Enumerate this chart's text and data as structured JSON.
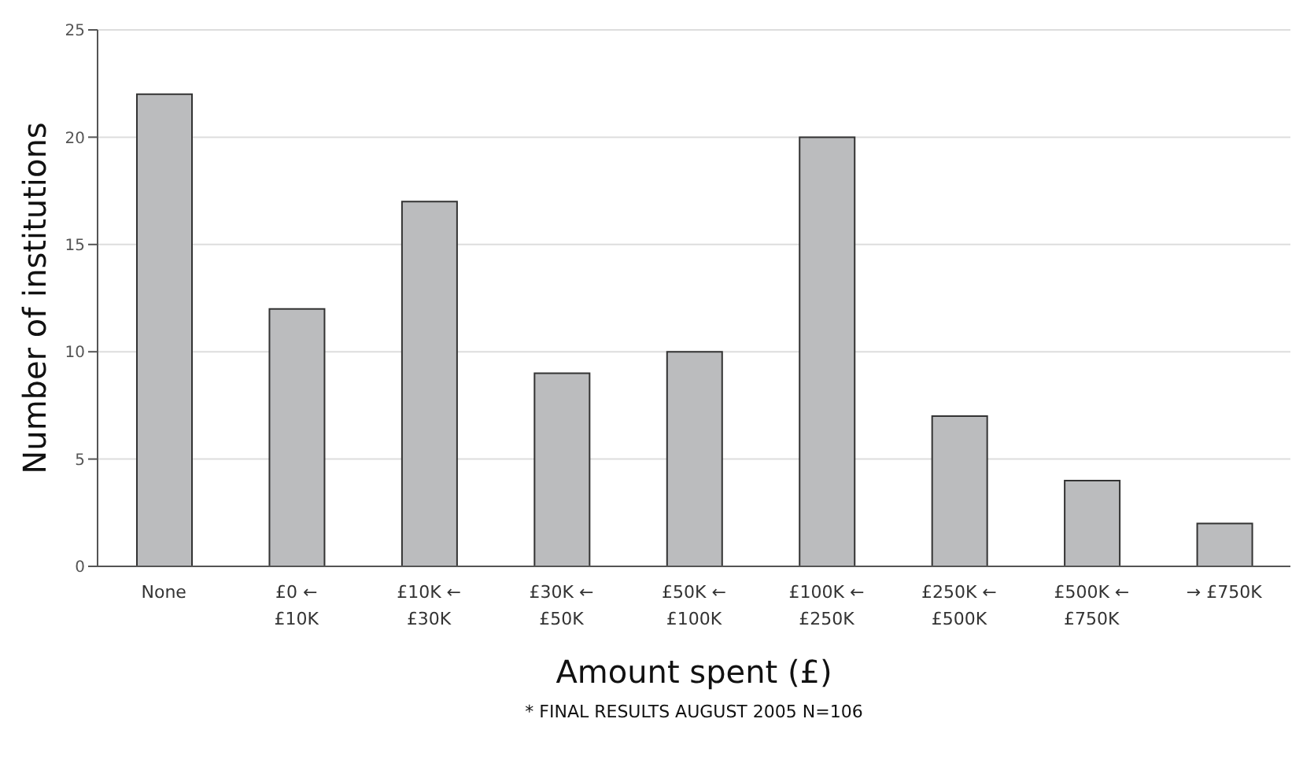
{
  "chart_data": {
    "type": "bar",
    "xlabel": "Amount spent (£)",
    "ylabel": "Number of institutions",
    "categories": [
      "None",
      "£0 ← £10K",
      "£10K ← £30K",
      "£30K ← £50K",
      "£50K ← £100K",
      "£100K ← £250K",
      "£250K ← £500K",
      "£500K ← £750K",
      "→ £750K"
    ],
    "values": [
      22,
      12,
      17,
      9,
      10,
      20,
      7,
      4,
      2
    ],
    "color": "#bbbcbe",
    "ylim": [
      0,
      25
    ],
    "yticks": [
      0,
      5,
      10,
      15,
      20,
      25
    ],
    "grid": "y",
    "annotations": [
      "* FINAL RESULTS AUGUST 2005 N=106"
    ]
  }
}
